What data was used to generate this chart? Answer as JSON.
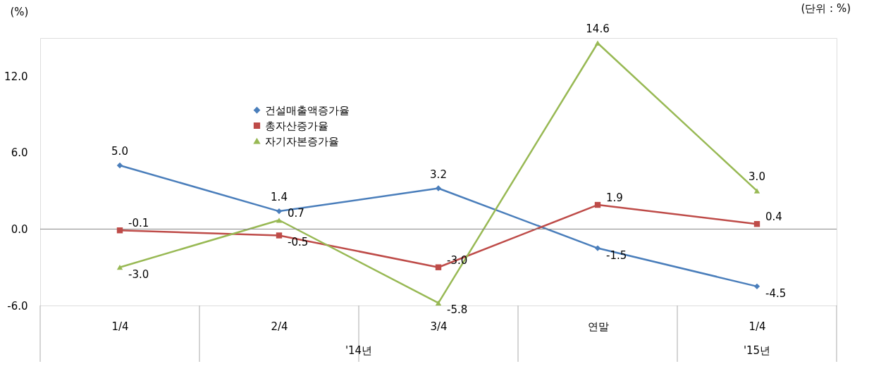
{
  "chart_data": {
    "type": "line",
    "ylabel": "(%)",
    "categories": [
      "1/4",
      "2/4",
      "3/4",
      "연말",
      "1/4"
    ],
    "series": [
      {
        "name": "건설매출액증가율",
        "color": "#4a7ebb",
        "marker": "diamond",
        "values": [
          5.0,
          1.4,
          3.2,
          -1.5,
          -4.5
        ],
        "value_labels": [
          "5.0",
          "1.4",
          "3.2",
          "-1.5",
          "-4.5"
        ]
      },
      {
        "name": "총자산증가율",
        "color": "#be4b48",
        "marker": "square",
        "values": [
          -0.1,
          -0.5,
          -3.0,
          1.9,
          0.4
        ],
        "value_labels": [
          "-0.1",
          "-0.5",
          "-3.0",
          "1.9",
          "0.4"
        ]
      },
      {
        "name": "자기자본증가율",
        "color": "#98b954",
        "marker": "triangle",
        "values": [
          -3.0,
          0.7,
          -5.8,
          14.6,
          3.0
        ],
        "value_labels": [
          "-3.0",
          "0.7",
          "-5.8",
          "14.6",
          "3.0"
        ]
      }
    ],
    "ylim": [
      -6,
      15
    ],
    "yticks": [
      {
        "value": -6,
        "label": "-6.0"
      },
      {
        "value": 0,
        "label": "0.0"
      },
      {
        "value": 6,
        "label": "6.0"
      },
      {
        "value": 12,
        "label": "12.0"
      }
    ],
    "ref_lines": [
      {
        "axis": "y",
        "value": 0,
        "color": "#868686"
      }
    ],
    "annotations": [
      "(단위 : %)",
      "'14년",
      "'15년"
    ],
    "grid": false,
    "legend": "top left",
    "line_style": "solid"
  }
}
